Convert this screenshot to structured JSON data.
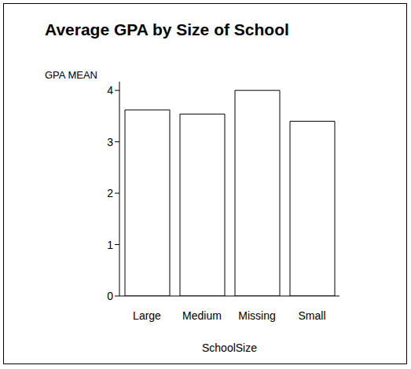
{
  "chart_data": {
    "type": "bar",
    "title": "Average GPA by Size of School",
    "xlabel": "SchoolSize",
    "ylabel": "GPA MEAN",
    "categories": [
      "Large",
      "Medium",
      "Missing",
      "Small"
    ],
    "values": [
      3.62,
      3.54,
      4.0,
      3.4
    ],
    "color": "#ffffff",
    "ylim": [
      0,
      4.17
    ],
    "yticks": [
      0,
      1,
      2,
      3,
      4
    ]
  }
}
